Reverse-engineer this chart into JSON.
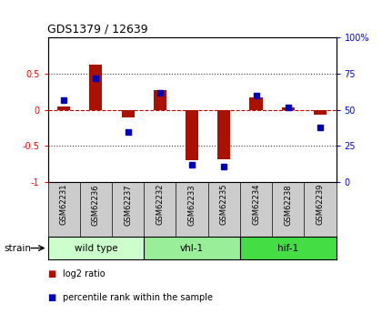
{
  "title": "GDS1379 / 12639",
  "samples": [
    "GSM62231",
    "GSM62236",
    "GSM62237",
    "GSM62232",
    "GSM62233",
    "GSM62235",
    "GSM62234",
    "GSM62238",
    "GSM62239"
  ],
  "log2_ratio": [
    0.05,
    0.63,
    -0.1,
    0.28,
    -0.7,
    -0.68,
    0.17,
    0.03,
    -0.07
  ],
  "percentile_rank": [
    57,
    72,
    35,
    62,
    12,
    11,
    60,
    52,
    38
  ],
  "groups": [
    {
      "label": "wild type",
      "start": 0,
      "end": 3,
      "color": "#ccffcc"
    },
    {
      "label": "vhl-1",
      "start": 3,
      "end": 6,
      "color": "#99ee99"
    },
    {
      "label": "hif-1",
      "start": 6,
      "end": 9,
      "color": "#44dd44"
    }
  ],
  "bar_color": "#aa1100",
  "dot_color": "#0000bb",
  "zero_line_color": "#cc0000",
  "hline_color": "#333333",
  "ylim_left": [
    -1.0,
    1.0
  ],
  "ylim_right": [
    0,
    100
  ],
  "yticks_left": [
    -1,
    -0.5,
    0,
    0.5
  ],
  "ytick_labels_left": [
    "-1",
    "-0.5",
    "0",
    "0.5"
  ],
  "yticks_right": [
    0,
    25,
    50,
    75,
    100
  ],
  "ytick_labels_right": [
    "0",
    "25",
    "50",
    "75",
    "100%"
  ],
  "sample_bg": "#cccccc",
  "legend": [
    {
      "label": "log2 ratio",
      "color": "#aa1100"
    },
    {
      "label": "percentile rank within the sample",
      "color": "#0000bb"
    }
  ]
}
